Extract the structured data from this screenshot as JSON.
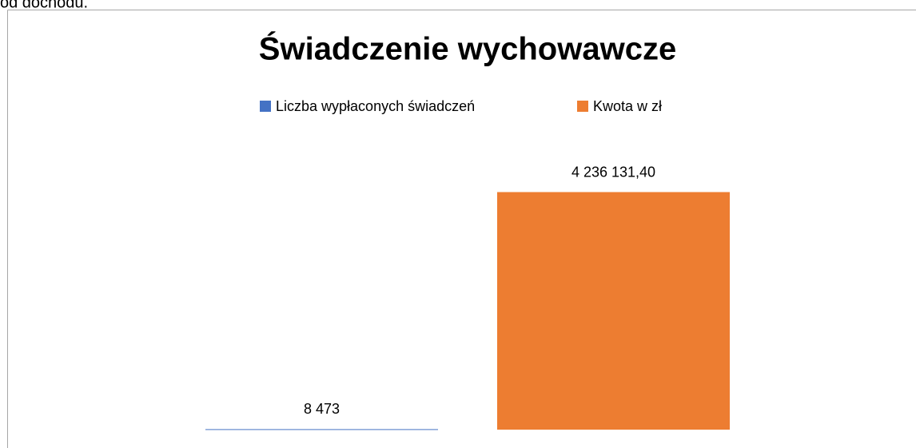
{
  "document": {
    "text": "od dochodu."
  },
  "chart_data": {
    "type": "bar",
    "title": "Świadczenie wychowawcze",
    "categories": [
      null
    ],
    "series": [
      {
        "name": "Liczba wypłaconych świadczeń",
        "color": "#4472c4",
        "values": [
          8473
        ],
        "value_labels": [
          "8 473"
        ]
      },
      {
        "name": "Kwota w zł",
        "color": "#ed7d31",
        "values": [
          4236131.4
        ],
        "value_labels": [
          "4 236 131,40"
        ]
      }
    ],
    "ylim": [
      0,
      4500000
    ]
  }
}
